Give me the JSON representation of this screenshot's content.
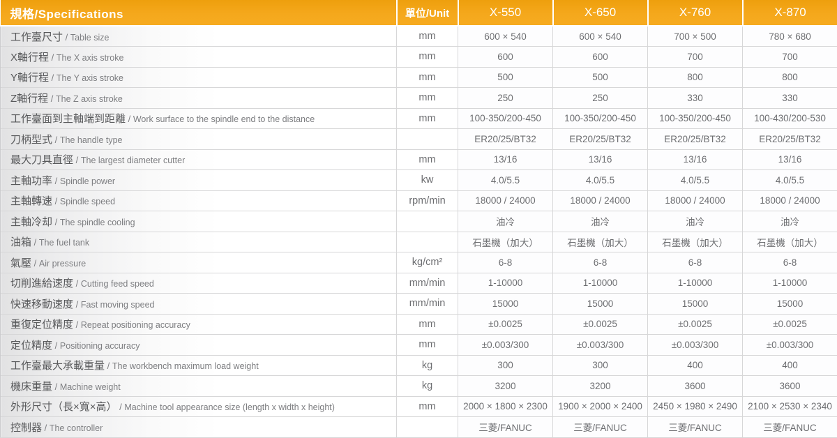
{
  "header": {
    "spec_label": "規格/Specifications",
    "unit_label": "單位/Unit",
    "models": [
      "X-550",
      "X-650",
      "X-760",
      "X-870"
    ]
  },
  "labels": {
    "separator": " / "
  },
  "colors": {
    "header_bg": "#F5A81C",
    "header_text": "#FFFFFF",
    "row_line": "#D7D7D8",
    "label_text": "#57585A",
    "value_text": "#6D6E71"
  },
  "rows": [
    {
      "zh": "工作臺尺寸",
      "en": "Table size",
      "unit": "mm",
      "values": [
        "600 × 540",
        "600 × 540",
        "700 × 500",
        "780 × 680"
      ]
    },
    {
      "zh": "X軸行程",
      "en": "The X axis stroke",
      "unit": "mm",
      "values": [
        "600",
        "600",
        "700",
        "700"
      ]
    },
    {
      "zh": "Y軸行程",
      "en": "The Y axis stroke",
      "unit": "mm",
      "values": [
        "500",
        "500",
        "800",
        "800"
      ]
    },
    {
      "zh": "Z軸行程",
      "en": "The Z axis stroke",
      "unit": "mm",
      "values": [
        "250",
        "250",
        "330",
        "330"
      ]
    },
    {
      "zh": "工作臺面到主軸端到距離",
      "en": "Work surface to the spindle end to the distance",
      "unit": "mm",
      "values": [
        "100-350/200-450",
        "100-350/200-450",
        "100-350/200-450",
        "100-430/200-530"
      ]
    },
    {
      "zh": "刀柄型式",
      "en": "The handle type",
      "unit": "",
      "values": [
        "ER20/25/BT32",
        "ER20/25/BT32",
        "ER20/25/BT32",
        "ER20/25/BT32"
      ]
    },
    {
      "zh": "最大刀具直徑",
      "en": "The largest diameter cutter",
      "unit": "mm",
      "values": [
        "13/16",
        "13/16",
        "13/16",
        "13/16"
      ]
    },
    {
      "zh": "主軸功率",
      "en": "Spindle power",
      "unit": "kw",
      "values": [
        "4.0/5.5",
        "4.0/5.5",
        "4.0/5.5",
        "4.0/5.5"
      ]
    },
    {
      "zh": "主軸轉速",
      "en": "Spindle speed",
      "unit": "rpm/min",
      "values": [
        "18000 / 24000",
        "18000 / 24000",
        "18000 / 24000",
        "18000 / 24000"
      ]
    },
    {
      "zh": "主軸冷却",
      "en": "The spindle cooling",
      "unit": "",
      "values": [
        "油冷",
        "油冷",
        "油冷",
        "油冷"
      ]
    },
    {
      "zh": "油箱",
      "en": "The fuel tank",
      "unit": "",
      "values": [
        "石墨機（加大）",
        "石墨機（加大）",
        "石墨機（加大）",
        "石墨機（加大）"
      ]
    },
    {
      "zh": "氣壓",
      "en": "Air pressure",
      "unit": "kg/cm²",
      "values": [
        "6-8",
        "6-8",
        "6-8",
        "6-8"
      ]
    },
    {
      "zh": "切削進給速度",
      "en": "Cutting feed speed",
      "unit": "mm/min",
      "values": [
        "1-10000",
        "1-10000",
        "1-10000",
        "1-10000"
      ]
    },
    {
      "zh": "快速移動速度",
      "en": "Fast moving speed",
      "unit": "mm/min",
      "values": [
        "15000",
        "15000",
        "15000",
        "15000"
      ]
    },
    {
      "zh": "重復定位精度",
      "en": "Repeat positioning accuracy",
      "unit": "mm",
      "values": [
        "±0.0025",
        "±0.0025",
        "±0.0025",
        "±0.0025"
      ]
    },
    {
      "zh": "定位精度",
      "en": "Positioning accuracy",
      "unit": "mm",
      "values": [
        "±0.003/300",
        "±0.003/300",
        "±0.003/300",
        "±0.003/300"
      ]
    },
    {
      "zh": "工作臺最大承載重量",
      "en": "The workbench maximum load weight",
      "unit": "kg",
      "values": [
        "300",
        "300",
        "400",
        "400"
      ]
    },
    {
      "zh": "機床重量",
      "en": "Machine weight",
      "unit": "kg",
      "values": [
        "3200",
        "3200",
        "3600",
        "3600"
      ]
    },
    {
      "zh": "外形尺寸（長×寬×高）",
      "en": "Machine tool appearance size (length x width x height)",
      "unit": "mm",
      "values": [
        "2000 × 1800 × 2300",
        "1900 × 2000 × 2400",
        "2450 × 1980 × 2490",
        "2100 × 2530 × 2340"
      ]
    },
    {
      "zh": "控制器",
      "en": "The controller",
      "unit": "",
      "values": [
        "三菱/FANUC",
        "三菱/FANUC",
        "三菱/FANUC",
        "三菱/FANUC"
      ]
    }
  ]
}
